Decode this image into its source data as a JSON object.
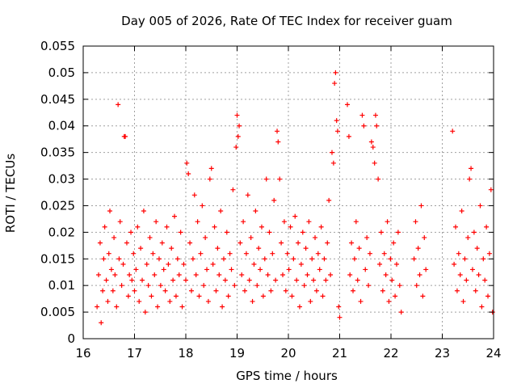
{
  "chart_data": {
    "type": "scatter",
    "title": "Day 005 of 2026, Rate Of TEC Index for receiver guam",
    "xlabel": "GPS time / hours",
    "ylabel": "ROTI / TECUs",
    "xlim": [
      16,
      24
    ],
    "ylim": [
      0,
      0.055
    ],
    "x_ticks": [
      "16",
      "17",
      "18",
      "19",
      "20",
      "21",
      "22",
      "23",
      "24"
    ],
    "y_ticks": [
      "0",
      "0.005",
      "0.01",
      "0.015",
      "0.02",
      "0.025",
      "0.03",
      "0.035",
      "0.04",
      "0.045",
      "0.05",
      "0.055"
    ],
    "x_tick_values": [
      16,
      17,
      18,
      19,
      20,
      21,
      22,
      23,
      24
    ],
    "y_tick_values": [
      0,
      0.005,
      0.01,
      0.015,
      0.02,
      0.025,
      0.03,
      0.035,
      0.04,
      0.045,
      0.05,
      0.055
    ],
    "grid": true,
    "marker": "+",
    "color": "#ff0000",
    "series": [
      {
        "points": [
          [
            16.27,
            0.006
          ],
          [
            16.3,
            0.012
          ],
          [
            16.33,
            0.018
          ],
          [
            16.35,
            0.003
          ],
          [
            16.38,
            0.009
          ],
          [
            16.4,
            0.015
          ],
          [
            16.42,
            0.021
          ],
          [
            16.45,
            0.011
          ],
          [
            16.48,
            0.007
          ],
          [
            16.5,
            0.016
          ],
          [
            16.52,
            0.024
          ],
          [
            16.55,
            0.013
          ],
          [
            16.58,
            0.009
          ],
          [
            16.6,
            0.019
          ],
          [
            16.62,
            0.012
          ],
          [
            16.65,
            0.006
          ],
          [
            16.68,
            0.044
          ],
          [
            16.7,
            0.015
          ],
          [
            16.72,
            0.022
          ],
          [
            16.75,
            0.01
          ],
          [
            16.78,
            0.014
          ],
          [
            16.8,
            0.038
          ],
          [
            16.82,
            0.038
          ],
          [
            16.85,
            0.018
          ],
          [
            16.88,
            0.008
          ],
          [
            16.9,
            0.012
          ],
          [
            16.93,
            0.02
          ],
          [
            16.95,
            0.011
          ],
          [
            16.98,
            0.016
          ],
          [
            17.0,
            0.009
          ],
          [
            17.03,
            0.013
          ],
          [
            17.06,
            0.021
          ],
          [
            17.09,
            0.007
          ],
          [
            17.12,
            0.017
          ],
          [
            17.15,
            0.011
          ],
          [
            17.18,
            0.024
          ],
          [
            17.21,
            0.005
          ],
          [
            17.24,
            0.014
          ],
          [
            17.27,
            0.01
          ],
          [
            17.3,
            0.019
          ],
          [
            17.33,
            0.008
          ],
          [
            17.36,
            0.016
          ],
          [
            17.39,
            0.012
          ],
          [
            17.42,
            0.022
          ],
          [
            17.45,
            0.006
          ],
          [
            17.48,
            0.015
          ],
          [
            17.51,
            0.01
          ],
          [
            17.54,
            0.018
          ],
          [
            17.57,
            0.013
          ],
          [
            17.6,
            0.009
          ],
          [
            17.63,
            0.021
          ],
          [
            17.66,
            0.014
          ],
          [
            17.69,
            0.007
          ],
          [
            17.72,
            0.017
          ],
          [
            17.75,
            0.011
          ],
          [
            17.78,
            0.023
          ],
          [
            17.81,
            0.008
          ],
          [
            17.84,
            0.015
          ],
          [
            17.87,
            0.012
          ],
          [
            17.9,
            0.02
          ],
          [
            17.93,
            0.006
          ],
          [
            17.96,
            0.014
          ],
          [
            18.0,
            0.011
          ],
          [
            18.02,
            0.033
          ],
          [
            18.05,
            0.031
          ],
          [
            18.08,
            0.018
          ],
          [
            18.11,
            0.009
          ],
          [
            18.14,
            0.015
          ],
          [
            18.17,
            0.027
          ],
          [
            18.2,
            0.012
          ],
          [
            18.23,
            0.022
          ],
          [
            18.26,
            0.008
          ],
          [
            18.29,
            0.016
          ],
          [
            18.32,
            0.025
          ],
          [
            18.35,
            0.01
          ],
          [
            18.38,
            0.019
          ],
          [
            18.41,
            0.013
          ],
          [
            18.44,
            0.007
          ],
          [
            18.47,
            0.03
          ],
          [
            18.5,
            0.032
          ],
          [
            18.53,
            0.014
          ],
          [
            18.56,
            0.021
          ],
          [
            18.59,
            0.009
          ],
          [
            18.62,
            0.017
          ],
          [
            18.65,
            0.012
          ],
          [
            18.68,
            0.024
          ],
          [
            18.71,
            0.006
          ],
          [
            18.74,
            0.015
          ],
          [
            18.77,
            0.011
          ],
          [
            18.8,
            0.02
          ],
          [
            18.83,
            0.008
          ],
          [
            18.86,
            0.016
          ],
          [
            18.89,
            0.013
          ],
          [
            18.92,
            0.028
          ],
          [
            18.95,
            0.01
          ],
          [
            18.98,
            0.036
          ],
          [
            19.0,
            0.042
          ],
          [
            19.02,
            0.038
          ],
          [
            19.04,
            0.04
          ],
          [
            19.06,
            0.018
          ],
          [
            19.09,
            0.012
          ],
          [
            19.12,
            0.022
          ],
          [
            19.15,
            0.009
          ],
          [
            19.18,
            0.016
          ],
          [
            19.21,
            0.027
          ],
          [
            19.24,
            0.011
          ],
          [
            19.27,
            0.019
          ],
          [
            19.3,
            0.007
          ],
          [
            19.33,
            0.014
          ],
          [
            19.36,
            0.024
          ],
          [
            19.39,
            0.01
          ],
          [
            19.42,
            0.017
          ],
          [
            19.45,
            0.013
          ],
          [
            19.48,
            0.021
          ],
          [
            19.51,
            0.008
          ],
          [
            19.54,
            0.015
          ],
          [
            19.57,
            0.03
          ],
          [
            19.6,
            0.012
          ],
          [
            19.63,
            0.02
          ],
          [
            19.66,
            0.009
          ],
          [
            19.69,
            0.016
          ],
          [
            19.72,
            0.026
          ],
          [
            19.75,
            0.011
          ],
          [
            19.78,
            0.039
          ],
          [
            19.8,
            0.037
          ],
          [
            19.83,
            0.03
          ],
          [
            19.86,
            0.018
          ],
          [
            19.89,
            0.012
          ],
          [
            19.92,
            0.022
          ],
          [
            19.95,
            0.009
          ],
          [
            19.98,
            0.016
          ],
          [
            20.01,
            0.013
          ],
          [
            20.04,
            0.021
          ],
          [
            20.07,
            0.008
          ],
          [
            20.1,
            0.015
          ],
          [
            20.13,
            0.023
          ],
          [
            20.16,
            0.011
          ],
          [
            20.19,
            0.018
          ],
          [
            20.22,
            0.006
          ],
          [
            20.25,
            0.014
          ],
          [
            20.28,
            0.02
          ],
          [
            20.31,
            0.01
          ],
          [
            20.34,
            0.017
          ],
          [
            20.37,
            0.012
          ],
          [
            20.4,
            0.022
          ],
          [
            20.43,
            0.007
          ],
          [
            20.46,
            0.015
          ],
          [
            20.49,
            0.011
          ],
          [
            20.52,
            0.019
          ],
          [
            20.55,
            0.009
          ],
          [
            20.58,
            0.016
          ],
          [
            20.61,
            0.013
          ],
          [
            20.64,
            0.021
          ],
          [
            20.67,
            0.008
          ],
          [
            20.7,
            0.015
          ],
          [
            20.73,
            0.011
          ],
          [
            20.76,
            0.018
          ],
          [
            20.79,
            0.026
          ],
          [
            20.82,
            0.012
          ],
          [
            20.85,
            0.035
          ],
          [
            20.88,
            0.033
          ],
          [
            20.9,
            0.048
          ],
          [
            20.92,
            0.05
          ],
          [
            20.94,
            0.041
          ],
          [
            20.96,
            0.039
          ],
          [
            20.98,
            0.006
          ],
          [
            21.0,
            0.004
          ],
          [
            21.15,
            0.044
          ],
          [
            21.18,
            0.038
          ],
          [
            21.2,
            0.012
          ],
          [
            21.23,
            0.018
          ],
          [
            21.26,
            0.009
          ],
          [
            21.29,
            0.015
          ],
          [
            21.32,
            0.022
          ],
          [
            21.35,
            0.011
          ],
          [
            21.38,
            0.017
          ],
          [
            21.41,
            0.007
          ],
          [
            21.44,
            0.042
          ],
          [
            21.47,
            0.04
          ],
          [
            21.5,
            0.013
          ],
          [
            21.53,
            0.019
          ],
          [
            21.56,
            0.01
          ],
          [
            21.59,
            0.016
          ],
          [
            21.62,
            0.037
          ],
          [
            21.65,
            0.036
          ],
          [
            21.68,
            0.033
          ],
          [
            21.7,
            0.042
          ],
          [
            21.72,
            0.04
          ],
          [
            21.75,
            0.03
          ],
          [
            21.78,
            0.014
          ],
          [
            21.81,
            0.02
          ],
          [
            21.84,
            0.009
          ],
          [
            21.87,
            0.016
          ],
          [
            21.9,
            0.012
          ],
          [
            21.93,
            0.022
          ],
          [
            21.96,
            0.007
          ],
          [
            21.99,
            0.015
          ],
          [
            22.02,
            0.011
          ],
          [
            22.05,
            0.018
          ],
          [
            22.08,
            0.008
          ],
          [
            22.11,
            0.014
          ],
          [
            22.14,
            0.02
          ],
          [
            22.17,
            0.01
          ],
          [
            22.2,
            0.005
          ],
          [
            22.45,
            0.015
          ],
          [
            22.48,
            0.022
          ],
          [
            22.5,
            0.01
          ],
          [
            22.53,
            0.017
          ],
          [
            22.56,
            0.012
          ],
          [
            22.59,
            0.025
          ],
          [
            22.62,
            0.008
          ],
          [
            22.65,
            0.019
          ],
          [
            22.68,
            0.013
          ],
          [
            23.2,
            0.039
          ],
          [
            23.23,
            0.014
          ],
          [
            23.26,
            0.021
          ],
          [
            23.29,
            0.009
          ],
          [
            23.32,
            0.016
          ],
          [
            23.35,
            0.012
          ],
          [
            23.38,
            0.024
          ],
          [
            23.41,
            0.007
          ],
          [
            23.44,
            0.015
          ],
          [
            23.47,
            0.011
          ],
          [
            23.5,
            0.019
          ],
          [
            23.53,
            0.03
          ],
          [
            23.56,
            0.032
          ],
          [
            23.59,
            0.013
          ],
          [
            23.62,
            0.02
          ],
          [
            23.65,
            0.009
          ],
          [
            23.68,
            0.017
          ],
          [
            23.71,
            0.012
          ],
          [
            23.74,
            0.025
          ],
          [
            23.77,
            0.006
          ],
          [
            23.8,
            0.015
          ],
          [
            23.83,
            0.011
          ],
          [
            23.86,
            0.021
          ],
          [
            23.89,
            0.008
          ],
          [
            23.92,
            0.016
          ],
          [
            23.95,
            0.028
          ],
          [
            23.98,
            0.005
          ]
        ]
      }
    ]
  }
}
